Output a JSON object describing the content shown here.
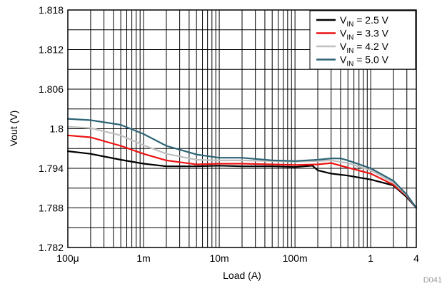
{
  "chart_data": {
    "type": "line",
    "xlabel": "Load (A)",
    "ylabel": "Vout (V)",
    "xscale": "log",
    "xlim": [
      0.0001,
      4
    ],
    "ylim": [
      1.782,
      1.818
    ],
    "grid": true,
    "legend_position": "top-right",
    "figure_id": "D041",
    "x_tick_values": [
      0.0001,
      0.001,
      0.01,
      0.1,
      1,
      4
    ],
    "x_tick_labels": [
      "100μ",
      "1m",
      "10m",
      "100m",
      "1",
      "4"
    ],
    "y_tick_values": [
      1.782,
      1.788,
      1.794,
      1.8,
      1.806,
      1.812,
      1.818
    ],
    "y_tick_labels": [
      "1.782",
      "1.788",
      "1.794",
      "1.8",
      "1.806",
      "1.812",
      "1.818"
    ],
    "series": [
      {
        "name": "VIN = 2.5 V",
        "legend_main": "V",
        "legend_sub": "IN",
        "legend_rest": " = 2.5 V",
        "color": "#000000",
        "x": [
          0.0001,
          0.0002,
          0.0005,
          0.001,
          0.002,
          0.005,
          0.01,
          0.02,
          0.05,
          0.1,
          0.17,
          0.2,
          0.3,
          0.5,
          1,
          2,
          3,
          4
        ],
        "y": [
          1.7966,
          1.7962,
          1.7953,
          1.7947,
          1.7943,
          1.7943,
          1.7944,
          1.7943,
          1.7943,
          1.7942,
          1.7944,
          1.7937,
          1.7932,
          1.7929,
          1.7923,
          1.7914,
          1.7896,
          1.788
        ]
      },
      {
        "name": "VIN = 3.3 V",
        "legend_main": "V",
        "legend_sub": "IN",
        "legend_rest": " = 3.3 V",
        "color": "#ee1111",
        "x": [
          0.0001,
          0.0002,
          0.0005,
          0.001,
          0.002,
          0.005,
          0.01,
          0.02,
          0.05,
          0.1,
          0.2,
          0.3,
          0.5,
          1,
          2,
          3,
          4
        ],
        "y": [
          1.799,
          1.7987,
          1.7974,
          1.7962,
          1.7952,
          1.7946,
          1.7947,
          1.7947,
          1.7946,
          1.7945,
          1.7946,
          1.7948,
          1.7941,
          1.7932,
          1.7915,
          1.7898,
          1.788
        ]
      },
      {
        "name": "VIN = 4.2 V",
        "legend_main": "V",
        "legend_sub": "IN",
        "legend_rest": " = 4.2 V",
        "color": "#c0c0c0",
        "x": [
          0.0001,
          0.0002,
          0.0005,
          0.001,
          0.002,
          0.005,
          0.01,
          0.02,
          0.05,
          0.1,
          0.2,
          0.3,
          0.5,
          1,
          2,
          3,
          4
        ],
        "y": [
          1.8003,
          1.8001,
          1.799,
          1.7975,
          1.7962,
          1.7953,
          1.7952,
          1.7952,
          1.7951,
          1.795,
          1.7951,
          1.7952,
          1.7948,
          1.7937,
          1.7918,
          1.7899,
          1.788
        ]
      },
      {
        "name": "VIN = 5.0 V",
        "legend_main": "V",
        "legend_sub": "IN",
        "legend_rest": " = 5.0 V",
        "color": "#2e6577",
        "x": [
          0.0001,
          0.0002,
          0.0005,
          0.001,
          0.002,
          0.005,
          0.01,
          0.02,
          0.05,
          0.1,
          0.2,
          0.3,
          0.4,
          0.5,
          1,
          2,
          3,
          4
        ],
        "y": [
          1.8015,
          1.8013,
          1.8006,
          1.7992,
          1.7974,
          1.7961,
          1.7956,
          1.7956,
          1.7952,
          1.7951,
          1.7953,
          1.7955,
          1.7955,
          1.7952,
          1.794,
          1.7921,
          1.79,
          1.788
        ]
      }
    ]
  }
}
